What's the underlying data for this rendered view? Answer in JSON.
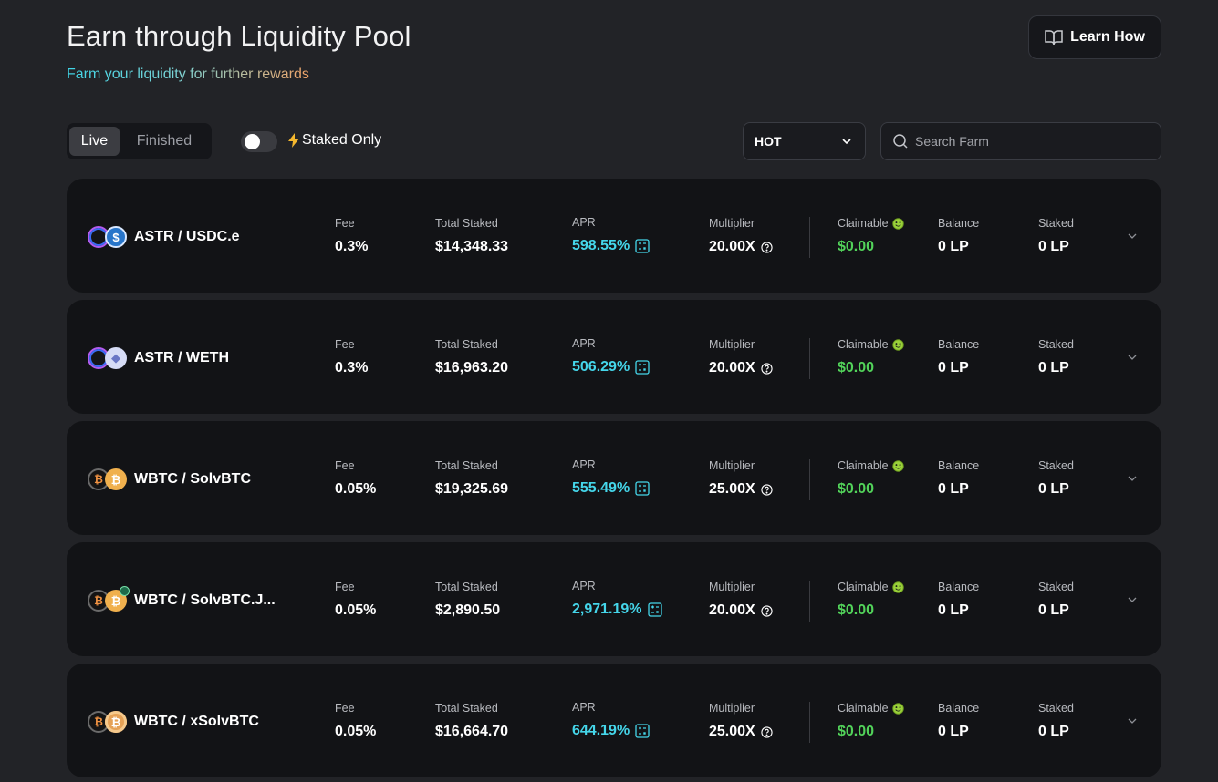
{
  "header": {
    "title": "Earn through Liquidity Pool",
    "subtitle": "Farm your liquidity for further rewards",
    "learn_label": "Learn How"
  },
  "filters": {
    "tabs": [
      {
        "label": "Live",
        "active": true
      },
      {
        "label": "Finished",
        "active": false
      }
    ],
    "staked_only_label": "Staked Only",
    "staked_only_on": false,
    "sort_value": "HOT",
    "search_placeholder": "Search Farm",
    "search_value": ""
  },
  "labels": {
    "fee": "Fee",
    "total_staked": "Total Staked",
    "apr": "APR",
    "multiplier": "Multiplier",
    "claimable": "Claimable",
    "balance": "Balance",
    "staked": "Staked"
  },
  "colors": {
    "apr": "#45d6ea",
    "claimable": "#52d35a",
    "row_bg": "#121316",
    "page_bg": "#222327"
  },
  "farms": [
    {
      "pair": "ASTR / USDC.e",
      "tokens": [
        "astr",
        "usdc"
      ],
      "fee": "0.3%",
      "total_staked": "$14,348.33",
      "apr": "598.55%",
      "multiplier": "20.00X",
      "claimable": "$0.00",
      "balance": "0 LP",
      "staked": "0 LP"
    },
    {
      "pair": "ASTR / WETH",
      "tokens": [
        "astr",
        "weth"
      ],
      "fee": "0.3%",
      "total_staked": "$16,963.20",
      "apr": "506.29%",
      "multiplier": "20.00X",
      "claimable": "$0.00",
      "balance": "0 LP",
      "staked": "0 LP"
    },
    {
      "pair": "WBTC / SolvBTC",
      "tokens": [
        "wbtc",
        "solv"
      ],
      "fee": "0.05%",
      "total_staked": "$19,325.69",
      "apr": "555.49%",
      "multiplier": "25.00X",
      "claimable": "$0.00",
      "balance": "0 LP",
      "staked": "0 LP"
    },
    {
      "pair": "WBTC / SolvBTC.J...",
      "tokens": [
        "wbtc",
        "solvj"
      ],
      "fee": "0.05%",
      "total_staked": "$2,890.50",
      "apr": "2,971.19%",
      "multiplier": "20.00X",
      "claimable": "$0.00",
      "balance": "0 LP",
      "staked": "0 LP"
    },
    {
      "pair": "WBTC / xSolvBTC",
      "tokens": [
        "wbtc",
        "xsolv"
      ],
      "fee": "0.05%",
      "total_staked": "$16,664.70",
      "apr": "644.19%",
      "multiplier": "25.00X",
      "claimable": "$0.00",
      "balance": "0 LP",
      "staked": "0 LP"
    }
  ],
  "icons": {
    "learn": "book-open-icon",
    "staked_only": "lightning-icon",
    "sort": "chevron-down-icon",
    "search": "search-icon",
    "apr": "calculator-icon",
    "multiplier": "help-circle-icon",
    "claimable": "smile-face-icon",
    "expand": "chevron-down-icon"
  }
}
